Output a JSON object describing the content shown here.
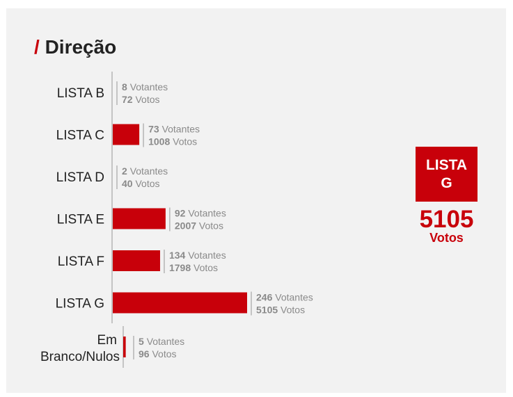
{
  "header": {
    "slash": "/",
    "title": "Direção"
  },
  "colors": {
    "accent": "#c8000a",
    "muted_text": "#8a8a8a",
    "background": "#f2f2f2"
  },
  "chart_data": {
    "type": "bar",
    "orientation": "horizontal",
    "title": "Direção",
    "categories": [
      "LISTA B",
      "LISTA C",
      "LISTA D",
      "LISTA E",
      "LISTA F",
      "LISTA G",
      "Em Branco/Nulos"
    ],
    "category_lines": [
      [
        "LISTA B"
      ],
      [
        "LISTA C"
      ],
      [
        "LISTA D"
      ],
      [
        "LISTA E"
      ],
      [
        "LISTA F"
      ],
      [
        "LISTA G"
      ],
      [
        "Em",
        "Branco/Nulos"
      ]
    ],
    "voters": [
      8,
      73,
      2,
      92,
      134,
      246,
      5
    ],
    "voters_unit": "Votantes",
    "values": [
      72,
      1008,
      40,
      2007,
      1798,
      5105,
      96
    ],
    "values_unit": "Votos",
    "xlim": [
      0,
      5105
    ],
    "bar_color": "#c8000a",
    "grid": false
  },
  "winner": {
    "label": "LISTA G",
    "value": "5105",
    "unit": "Votos"
  }
}
